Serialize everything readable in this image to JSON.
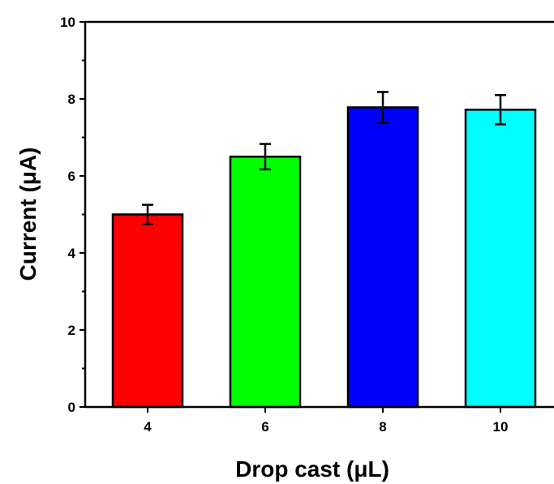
{
  "chart_data": {
    "type": "bar",
    "title": "",
    "xlabel": "Drop cast (μL)",
    "ylabel": "Current (μA)",
    "categories": [
      "4",
      "6",
      "8",
      "10"
    ],
    "values": [
      5.0,
      6.5,
      7.78,
      7.72
    ],
    "errors": [
      0.25,
      0.33,
      0.4,
      0.38
    ],
    "colors": [
      "#ff0000",
      "#00ff00",
      "#0000ff",
      "#00ffff"
    ],
    "ylim": [
      0,
      10
    ],
    "yticks": [
      "0",
      "2",
      "4",
      "6",
      "8",
      "10"
    ],
    "grid": false,
    "legend": "none"
  }
}
